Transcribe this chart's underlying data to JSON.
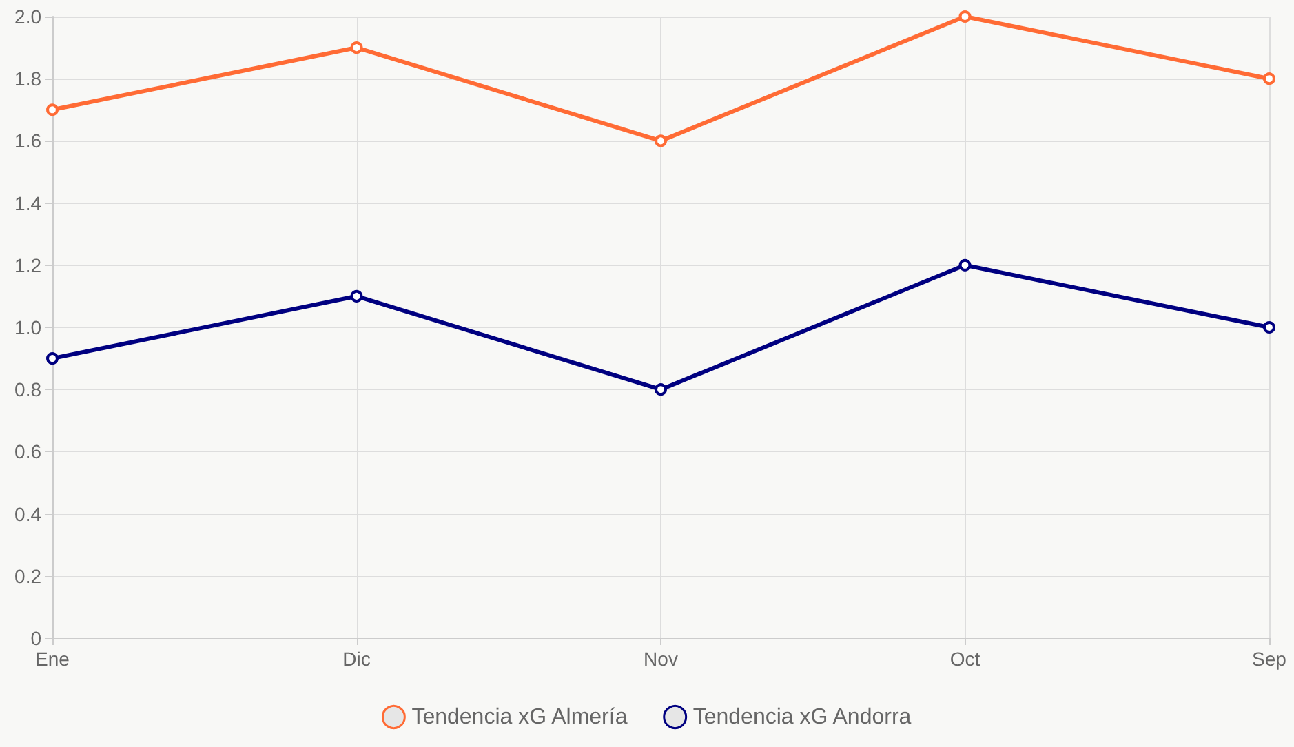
{
  "chart_data": {
    "type": "line",
    "categories": [
      "Ene",
      "Dic",
      "Nov",
      "Oct",
      "Sep"
    ],
    "series": [
      {
        "name": "Tendencia xG Almería",
        "color": "#ff6b35",
        "values": [
          1.7,
          1.9,
          1.6,
          2.0,
          1.8
        ]
      },
      {
        "name": "Tendencia xG Andorra",
        "color": "#000080",
        "values": [
          0.9,
          1.1,
          0.8,
          1.2,
          1.0
        ]
      }
    ],
    "ylim": [
      0,
      2
    ],
    "yticks": [
      0,
      0.2,
      0.4,
      0.6,
      0.8,
      {
        "value": 1,
        "label": "1.0"
      },
      1.2,
      1.4,
      1.6,
      1.8,
      {
        "value": 2,
        "label": "2.0"
      }
    ],
    "grid": true,
    "legend": "bottom",
    "marker": "circle",
    "line_style": "solid"
  }
}
